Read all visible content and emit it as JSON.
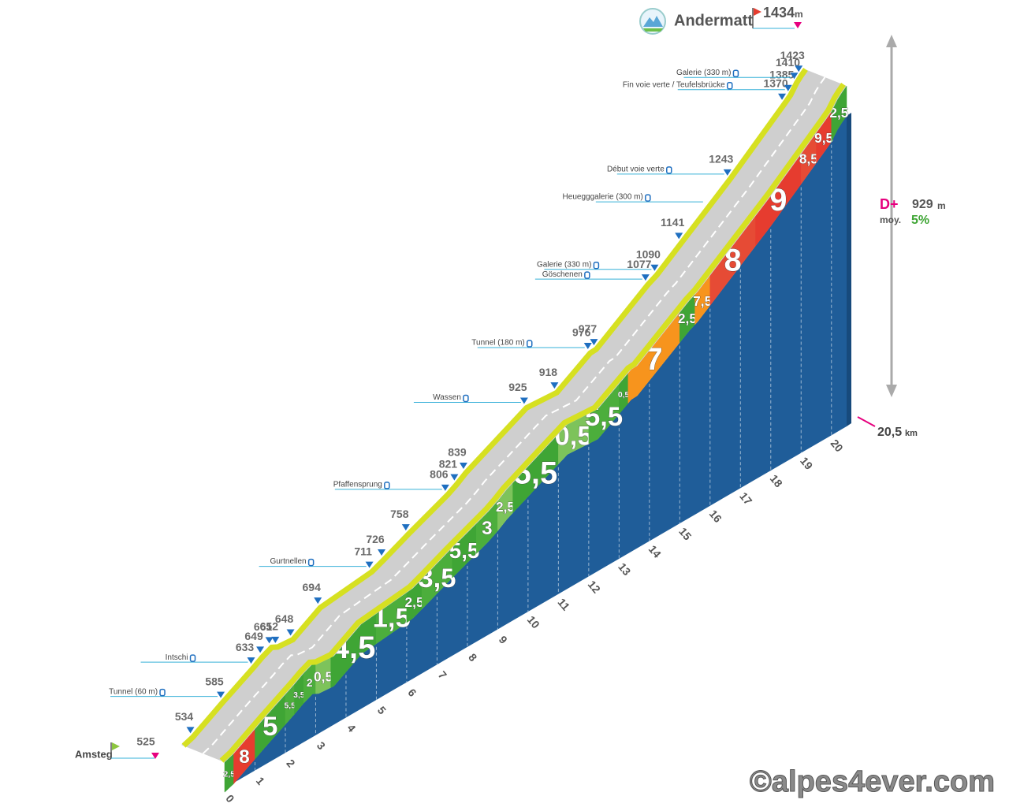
{
  "chart_data": {
    "type": "climb-profile",
    "start": {
      "name": "Amsteg"
    },
    "end": {
      "name": "Andermatt",
      "unit": "m"
    },
    "points": {
      "km": [
        0,
        0.3,
        1.3,
        2.3,
        2.6,
        2.9,
        3.1,
        3.6,
        4.5,
        6.2,
        6.6,
        7.4,
        8.7,
        9.0,
        9.3,
        11.3,
        12.3,
        13.4,
        13.6,
        15.3,
        15.6,
        16.4,
        18.0,
        19.8,
        20.0,
        20.2,
        20.35,
        20.5
      ],
      "alt": [
        525,
        534,
        585,
        633,
        649,
        661,
        652,
        648,
        694,
        711,
        726,
        758,
        806,
        821,
        839,
        925,
        918,
        976,
        977,
        1077,
        1090,
        1141,
        1243,
        1370,
        1385,
        1410,
        1423,
        1434
      ]
    },
    "xlim": [
      0,
      20.5
    ],
    "xticks": [
      0,
      1,
      2,
      3,
      4,
      5,
      6,
      7,
      8,
      9,
      10,
      11,
      12,
      13,
      14,
      15,
      16,
      17,
      18,
      19,
      20
    ],
    "ylim": [
      450,
      1434
    ],
    "segments": {
      "bounds": [
        0,
        0.3,
        1,
        2,
        2.3,
        2.6,
        3,
        3.5,
        5,
        6,
        6.5,
        7.5,
        8.3,
        9,
        9.5,
        11,
        12,
        13,
        13.3,
        15,
        15.5,
        16,
        17.5,
        19,
        19.5,
        20,
        20.5
      ],
      "values": [
        2.5,
        8,
        5,
        5.5,
        3.5,
        2,
        0.5,
        4.5,
        1.5,
        2.5,
        3.5,
        5.5,
        3,
        2.5,
        5.5,
        0.5,
        5.5,
        0.5,
        7,
        2.5,
        7.5,
        8,
        9,
        8.5,
        9.5,
        2.5
      ],
      "value_labels": [
        "2,5",
        "8",
        "5",
        "5,5",
        "3,5",
        "2",
        "0,5",
        "4,5",
        "1,5",
        "2,5",
        "3,5",
        "5,5",
        "3",
        "2,5",
        "5,5",
        "0,5",
        "5,5",
        "0,5",
        "7",
        "2,5",
        "7,5",
        "8",
        "9",
        "8,5",
        "9,5",
        "2,5"
      ],
      "colors": [
        "#3fa535",
        "#e63c2f",
        "#3fa535",
        "#4cae3c",
        "#3fa535",
        "#4cae3c",
        "#7dc35b",
        "#3fa535",
        "#4cae3c",
        "#3fa535",
        "#4cae3c",
        "#3fa535",
        "#4cae3c",
        "#7dc35b",
        "#3fa535",
        "#7dc35b",
        "#4cae3c",
        "#3fa535",
        "#f7941d",
        "#3fa535",
        "#f7941d",
        "#e64b35",
        "#e63c2f",
        "#e64b35",
        "#e63c2f",
        "#3fa535"
      ]
    },
    "places": {
      "names": [
        "Tunnel (60 m)",
        "Intschi",
        "Gurtnellen",
        "Pfaffensprung",
        "Wassen",
        "Tunnel (180 m)",
        "Göschenen",
        "Galerie (330 m)",
        "Heuegggalerie (300 m)",
        "Début voie verte",
        "Fin voie verte / Teufelsbrücke",
        "Galerie (330 m)"
      ],
      "km": [
        1.3,
        2.3,
        6.2,
        8.7,
        11.3,
        13.4,
        15.3,
        15.6,
        17.3,
        18.0,
        20.0,
        20.2
      ]
    },
    "climb": {
      "label": "D+",
      "value": 929,
      "unit": "m"
    },
    "average": {
      "label": "moy.",
      "value": 5,
      "value_label": "5%"
    },
    "distance": {
      "value": 20.5,
      "value_label": "20,5",
      "unit": "km"
    },
    "source": "©alpes4ever.com"
  }
}
